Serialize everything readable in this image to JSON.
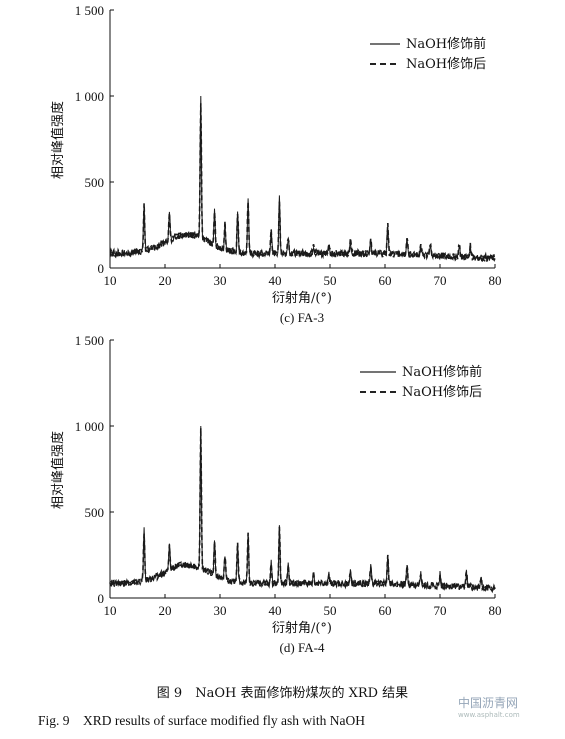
{
  "chart_data": [
    {
      "type": "line",
      "subtitle": "(c) FA-3",
      "xlabel": "衍射角/(°)",
      "ylabel": "相对峰值强度",
      "xlim": [
        10,
        80
      ],
      "ylim": [
        0,
        1500
      ],
      "xticks": [
        "10",
        "20",
        "30",
        "40",
        "50",
        "60",
        "70",
        "80"
      ],
      "yticks": [
        "0",
        "500",
        "1 000",
        "1 500"
      ],
      "legend_position": "top-right",
      "series": [
        {
          "name": "NaOH修饰前",
          "style": "solid"
        },
        {
          "name": "NaOH修饰后",
          "style": "dashed"
        }
      ],
      "peaks": [
        {
          "x": 16.2,
          "y": 370
        },
        {
          "x": 20.8,
          "y": 320
        },
        {
          "x": 26.5,
          "y": 1000
        },
        {
          "x": 29.0,
          "y": 330
        },
        {
          "x": 30.9,
          "y": 260
        },
        {
          "x": 33.2,
          "y": 330
        },
        {
          "x": 35.1,
          "y": 400
        },
        {
          "x": 39.3,
          "y": 210
        },
        {
          "x": 40.8,
          "y": 410
        },
        {
          "x": 42.4,
          "y": 190
        },
        {
          "x": 47.0,
          "y": 130
        },
        {
          "x": 49.8,
          "y": 140
        },
        {
          "x": 53.7,
          "y": 160
        },
        {
          "x": 57.4,
          "y": 180
        },
        {
          "x": 60.5,
          "y": 250
        },
        {
          "x": 64.0,
          "y": 180
        },
        {
          "x": 66.5,
          "y": 130
        },
        {
          "x": 68.2,
          "y": 140
        },
        {
          "x": 73.5,
          "y": 140
        },
        {
          "x": 75.5,
          "y": 130
        }
      ]
    },
    {
      "type": "line",
      "subtitle": "(d) FA-4",
      "xlabel": "衍射角/(°)",
      "ylabel": "相对峰值强度",
      "xlim": [
        10,
        80
      ],
      "ylim": [
        0,
        1500
      ],
      "xticks": [
        "10",
        "20",
        "30",
        "40",
        "50",
        "60",
        "70",
        "80"
      ],
      "yticks": [
        "0",
        "500",
        "1 000",
        "1 500"
      ],
      "legend_position": "top-right",
      "series": [
        {
          "name": "NaOH修饰前",
          "style": "solid"
        },
        {
          "name": "NaOH修饰后",
          "style": "dashed"
        }
      ],
      "peaks": [
        {
          "x": 16.2,
          "y": 400
        },
        {
          "x": 20.8,
          "y": 310
        },
        {
          "x": 26.5,
          "y": 1000
        },
        {
          "x": 29.0,
          "y": 340
        },
        {
          "x": 30.9,
          "y": 260
        },
        {
          "x": 33.2,
          "y": 320
        },
        {
          "x": 35.1,
          "y": 380
        },
        {
          "x": 39.3,
          "y": 220
        },
        {
          "x": 40.8,
          "y": 420
        },
        {
          "x": 42.4,
          "y": 190
        },
        {
          "x": 47.0,
          "y": 140
        },
        {
          "x": 49.8,
          "y": 140
        },
        {
          "x": 53.7,
          "y": 160
        },
        {
          "x": 57.4,
          "y": 190
        },
        {
          "x": 60.5,
          "y": 260
        },
        {
          "x": 64.0,
          "y": 190
        },
        {
          "x": 66.5,
          "y": 140
        },
        {
          "x": 70.0,
          "y": 140
        },
        {
          "x": 74.8,
          "y": 150
        },
        {
          "x": 77.5,
          "y": 120
        }
      ]
    }
  ],
  "caption_cn": "图 9　NaOH 表面修饰粉煤灰的 XRD 结果",
  "caption_en": "Fig. 9　XRD results of surface modified fly ash with NaOH",
  "watermark": {
    "text": "中国沥青网",
    "url": "www.asphalt.com"
  }
}
